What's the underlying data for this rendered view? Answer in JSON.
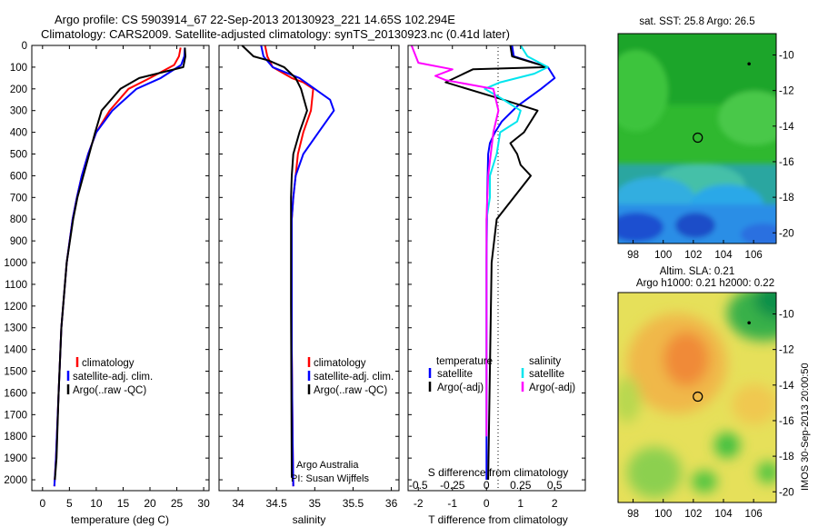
{
  "header": {
    "line1": "Argo profile: CS 5903914_67 22-Sep-2013 20130923_221 14.65S 102.294E",
    "line2": "Climatology: CARS2009. Satellite-adjusted climatology: synTS_20130923.nc (0.41d later)"
  },
  "stamp": "IMOS 30-Sep-2013 20:00:50",
  "colors": {
    "climatology": "#ff0000",
    "satellite": "#0000ff",
    "argo": "#000000",
    "satellite_s": "#00e5ee",
    "argo_s": "#ff00ff"
  },
  "chart_data": [
    {
      "type": "line",
      "xlabel": "temperature (deg C)",
      "ylabel": "",
      "xlim": [
        -2,
        31
      ],
      "ylim": [
        2050,
        0
      ],
      "xticks": [
        0,
        5,
        10,
        15,
        20,
        25,
        30
      ],
      "yticks": [
        0,
        100,
        200,
        300,
        400,
        500,
        600,
        700,
        800,
        900,
        1000,
        1100,
        1200,
        1300,
        1400,
        1500,
        1600,
        1700,
        1800,
        1900,
        2000
      ],
      "legend": [
        "climatology",
        "satellite-adj. clim.",
        "Argo(..raw -QC)"
      ],
      "series": [
        {
          "name": "climatology",
          "color": "#ff0000",
          "x": [
            25.7,
            25.4,
            24.5,
            20,
            16,
            12.5,
            10,
            8.5,
            7.3,
            6.4,
            5.6,
            4.5,
            3.5,
            3,
            2.5,
            2.2
          ],
          "y": [
            10,
            50,
            90,
            150,
            200,
            300,
            400,
            500,
            600,
            700,
            800,
            1000,
            1300,
            1600,
            1900,
            2030
          ]
        },
        {
          "name": "satellite-adj. clim.",
          "color": "#0000ff",
          "x": [
            26.5,
            26.4,
            25.8,
            22,
            17.5,
            13,
            10,
            8.5,
            7.3,
            6.4,
            5.6,
            4.5,
            3.5,
            3,
            2.5,
            2.2
          ],
          "y": [
            10,
            50,
            90,
            150,
            200,
            300,
            400,
            500,
            600,
            700,
            800,
            1000,
            1300,
            1600,
            1900,
            2030
          ]
        },
        {
          "name": "Argo(..raw -QC)",
          "color": "#000000",
          "x": [
            26.5,
            26.6,
            26.2,
            18,
            14.5,
            11,
            9.8,
            8.7,
            7.6,
            6.5,
            5.7,
            4.5,
            3.5,
            3,
            2.6,
            2.3
          ],
          "y": [
            10,
            50,
            100,
            150,
            200,
            300,
            400,
            500,
            600,
            700,
            800,
            1000,
            1300,
            1600,
            1900,
            2000
          ]
        }
      ]
    },
    {
      "type": "line",
      "xlabel": "salinity",
      "xlim": [
        33.75,
        36.1
      ],
      "ylim": [
        2050,
        0
      ],
      "xticks": [
        34,
        34.5,
        35,
        35.5,
        36
      ],
      "legend": [
        "climatology",
        "satellite-adj. clim.",
        "Argo(..raw -QC)"
      ],
      "annotation": [
        "Argo Australia",
        "PI: Susan Wijffels"
      ],
      "series": [
        {
          "name": "climatology",
          "color": "#ff0000",
          "x": [
            34.35,
            34.38,
            34.45,
            34.7,
            34.85,
            34.98,
            34.95,
            34.85,
            34.78,
            34.75,
            34.72,
            34.7,
            34.7,
            34.7,
            34.71,
            34.72
          ],
          "y": [
            0,
            50,
            100,
            150,
            170,
            200,
            300,
            400,
            500,
            600,
            700,
            800,
            1000,
            1400,
            1800,
            2030
          ]
        },
        {
          "name": "satellite-adj. clim.",
          "color": "#0000ff",
          "x": [
            34.3,
            34.33,
            34.45,
            34.8,
            35.0,
            35.2,
            35.25,
            35.05,
            34.85,
            34.75,
            34.72,
            34.7,
            34.7,
            34.7,
            34.71,
            34.72
          ],
          "y": [
            0,
            50,
            100,
            150,
            200,
            250,
            300,
            400,
            500,
            600,
            700,
            800,
            1000,
            1400,
            1800,
            2030
          ]
        },
        {
          "name": "Argo(..raw -QC)",
          "color": "#000000",
          "x": [
            34.05,
            34.2,
            34.4,
            34.6,
            34.75,
            34.82,
            34.9,
            34.8,
            34.72,
            34.7,
            34.69,
            34.69,
            34.69,
            34.7
          ],
          "y": [
            0,
            50,
            70,
            100,
            150,
            200,
            300,
            400,
            500,
            600,
            700,
            800,
            1200,
            1990
          ]
        }
      ]
    },
    {
      "type": "line",
      "xlabel": "T difference from climatology",
      "xlabel_top": "S difference from climatology",
      "xlim": [
        -2.3,
        2.9
      ],
      "ylim": [
        2050,
        0
      ],
      "xticks": [
        -2,
        -1,
        0,
        1,
        2
      ],
      "xticks_top": [
        "-0.5",
        "-0.25",
        "0",
        "0.25",
        "0.5"
      ],
      "legend_temperature": {
        "heading": "temperature",
        "items": [
          "satellite",
          "Argo(-adj)"
        ]
      },
      "legend_salinity": {
        "heading": "salinity",
        "items": [
          "satellite",
          "Argo(-adj)"
        ]
      },
      "series": [
        {
          "name": "satellite",
          "group": "temperature",
          "color": "#0000ff",
          "x": [
            0.75,
            0.8,
            1.8,
            2.0,
            1.6,
            0.9,
            0.45,
            0.25,
            0.1,
            0.05,
            0.02,
            0.0,
            0.0
          ],
          "y": [
            0,
            50,
            100,
            150,
            200,
            280,
            350,
            400,
            450,
            500,
            700,
            1000,
            2000
          ]
        },
        {
          "name": "Argo(-adj)",
          "group": "temperature",
          "color": "#000000",
          "x": [
            0.7,
            0.75,
            1.8,
            -0.4,
            -1.2,
            0.5,
            1.5,
            1.1,
            0.7,
            0.9,
            1.0,
            1.3,
            0.8,
            0.3,
            0.15,
            0.05
          ],
          "y": [
            0,
            50,
            100,
            110,
            170,
            250,
            300,
            400,
            450,
            500,
            550,
            600,
            700,
            800,
            1000,
            2000
          ]
        },
        {
          "name": "satellite",
          "group": "salinity",
          "color": "#00e5ee",
          "x": [
            1.0,
            1.2,
            1.8,
            1.4,
            0.4,
            -0.05,
            0.5,
            1.0,
            0.9,
            0.4,
            0.3,
            0.1,
            0.1,
            0.0,
            0.0
          ],
          "y": [
            0,
            50,
            100,
            130,
            170,
            200,
            250,
            300,
            350,
            400,
            500,
            600,
            700,
            800,
            1800
          ]
        },
        {
          "name": "Argo(-adj)",
          "group": "salinity",
          "color": "#ff00ff",
          "x": [
            -2.2,
            -2.0,
            -1.0,
            -1.5,
            -1.2,
            0.2,
            0.35,
            0.2,
            0.05,
            0.0,
            0.0
          ],
          "y": [
            0,
            80,
            110,
            140,
            160,
            200,
            300,
            400,
            600,
            800,
            1800
          ]
        }
      ]
    },
    {
      "type": "heatmap",
      "title": "sat. SST: 25.8 Argo: 26.5",
      "xlim": [
        97,
        107.5
      ],
      "ylim": [
        -20.6,
        -8.8
      ],
      "xticks": [
        98,
        100,
        102,
        104,
        106
      ],
      "yticks": [
        -10,
        -12,
        -14,
        -16,
        -18,
        -20
      ],
      "argo_position": {
        "lon": 102.294,
        "lat": -14.65
      },
      "marker_2": {
        "lon": 105.7,
        "lat": -10.5
      }
    },
    {
      "type": "heatmap",
      "title": "Altim. SLA: 0.21",
      "subtitle": "Argo h1000: 0.21 h2000: 0.22",
      "xlim": [
        97,
        107.5
      ],
      "ylim": [
        -20.6,
        -8.8
      ],
      "xticks": [
        98,
        100,
        102,
        104,
        106
      ],
      "yticks": [
        -10,
        -12,
        -14,
        -16,
        -18,
        -20
      ],
      "argo_position": {
        "lon": 102.294,
        "lat": -14.65
      },
      "marker_2": {
        "lon": 105.7,
        "lat": -10.5
      }
    }
  ]
}
